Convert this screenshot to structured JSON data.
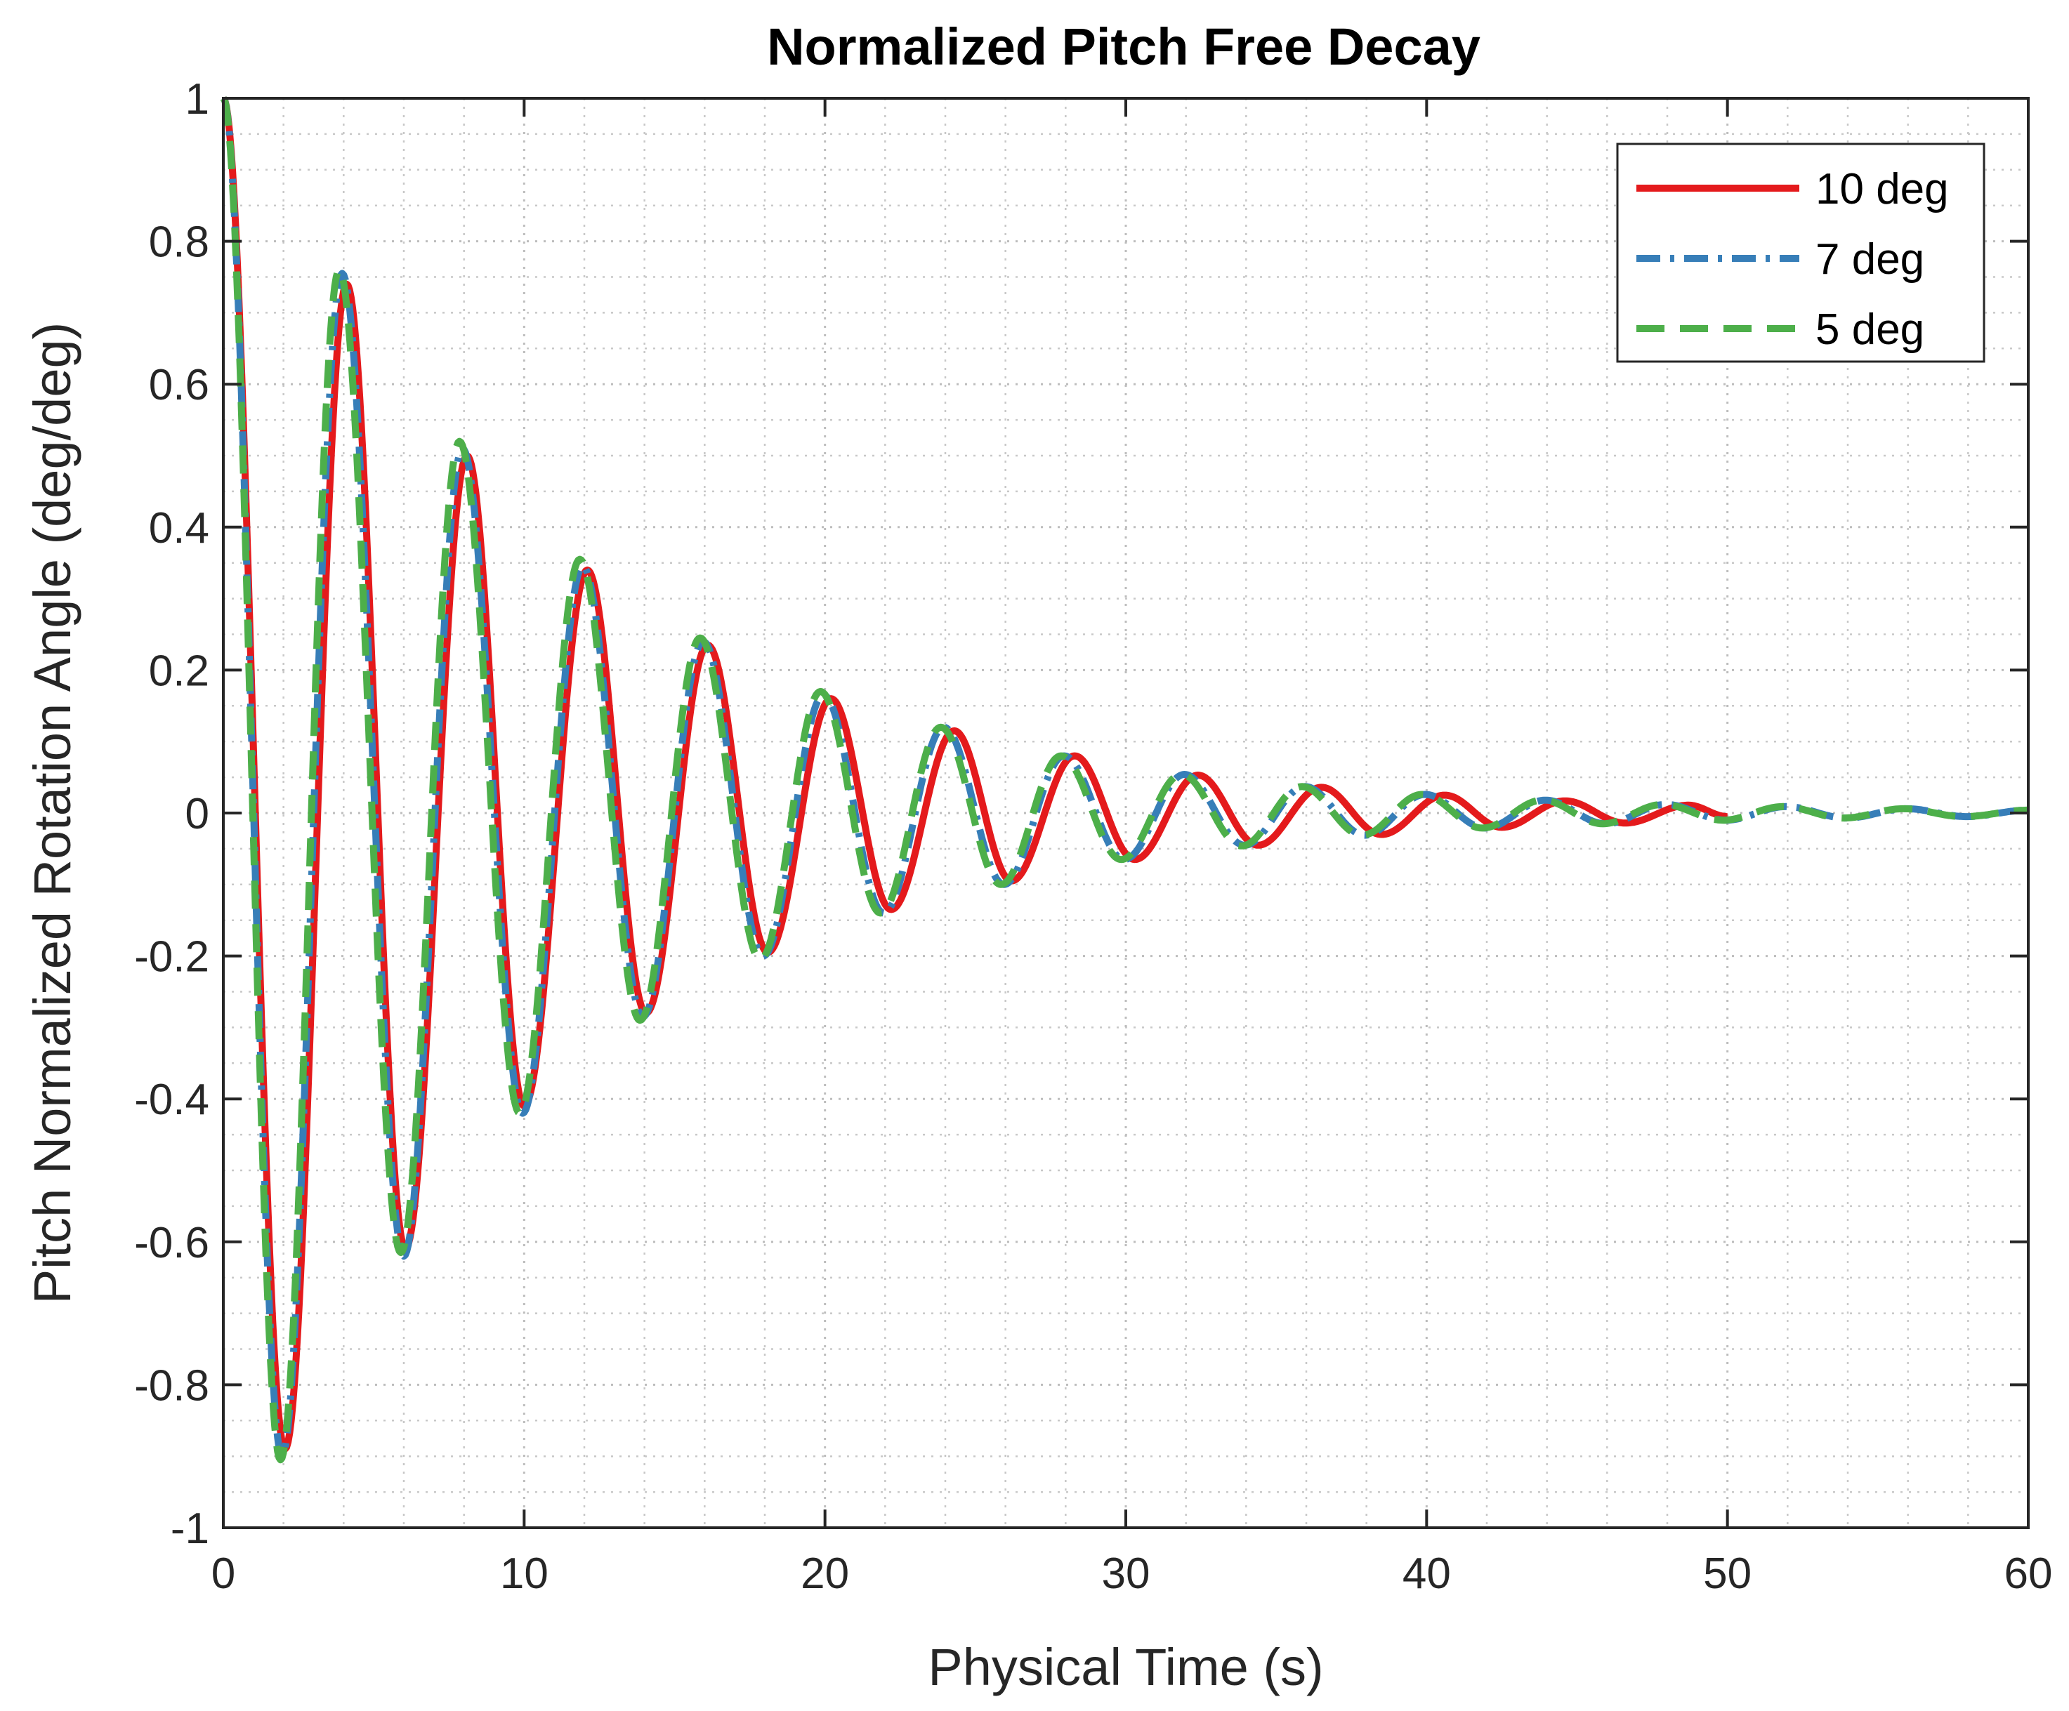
{
  "chart_data": {
    "type": "line",
    "title": "Normalized Pitch Free Decay",
    "xlabel": "Physical Time (s)",
    "ylabel": "Pitch Normalized Rotation Angle (deg/deg)",
    "xlim": [
      0,
      60
    ],
    "ylim": [
      -1,
      1
    ],
    "xticks": [
      0,
      10,
      20,
      30,
      40,
      50,
      60
    ],
    "xtick_labels": [
      "0",
      "10",
      "20",
      "30",
      "40",
      "50",
      "60"
    ],
    "yticks": [
      -1,
      -0.8,
      -0.6,
      -0.4,
      -0.2,
      0,
      0.2,
      0.4,
      0.6,
      0.8,
      1
    ],
    "ytick_labels": [
      "-1",
      "-0.8",
      "-0.6",
      "-0.4",
      "-0.2",
      "0",
      "0.2",
      "0.4",
      "0.6",
      "0.8",
      "1"
    ],
    "grid": true,
    "minor_grid": true,
    "legend_position": "top-right",
    "series": [
      {
        "name": "10 deg",
        "color": "#e41a1c",
        "dash": "solid",
        "extrema": [
          [
            0,
            1.0
          ],
          [
            2.05,
            -0.89
          ],
          [
            4.1,
            0.74
          ],
          [
            6.05,
            -0.61
          ],
          [
            8.1,
            0.5
          ],
          [
            10.0,
            -0.41
          ],
          [
            12.1,
            0.34
          ],
          [
            14.05,
            -0.28
          ],
          [
            16.1,
            0.235
          ],
          [
            18.1,
            -0.195
          ],
          [
            20.2,
            0.16
          ],
          [
            22.2,
            -0.135
          ],
          [
            24.3,
            0.115
          ],
          [
            26.2,
            -0.095
          ],
          [
            28.3,
            0.08
          ],
          [
            30.3,
            -0.065
          ],
          [
            32.4,
            0.053
          ],
          [
            34.4,
            -0.045
          ],
          [
            36.5,
            0.036
          ],
          [
            38.5,
            -0.03
          ],
          [
            40.6,
            0.025
          ],
          [
            42.5,
            -0.02
          ],
          [
            44.6,
            0.017
          ],
          [
            46.6,
            -0.014
          ],
          [
            48.7,
            0.011
          ],
          [
            50.0,
            -0.005
          ]
        ]
      },
      {
        "name": "7 deg",
        "color": "#377eb8",
        "dash": "dashdot",
        "extrema": [
          [
            0,
            1.0
          ],
          [
            1.95,
            -0.9
          ],
          [
            3.95,
            0.755
          ],
          [
            6.0,
            -0.62
          ],
          [
            7.95,
            0.51
          ],
          [
            9.95,
            -0.42
          ],
          [
            11.95,
            0.345
          ],
          [
            13.95,
            -0.285
          ],
          [
            15.95,
            0.24
          ],
          [
            17.95,
            -0.2
          ],
          [
            19.95,
            0.165
          ],
          [
            21.95,
            -0.14
          ],
          [
            23.95,
            0.12
          ],
          [
            25.95,
            -0.1
          ],
          [
            27.95,
            0.08
          ],
          [
            29.95,
            -0.065
          ],
          [
            31.95,
            0.054
          ],
          [
            33.95,
            -0.045
          ],
          [
            35.95,
            0.037
          ],
          [
            37.95,
            -0.031
          ],
          [
            39.95,
            0.026
          ],
          [
            41.95,
            -0.021
          ],
          [
            43.95,
            0.018
          ],
          [
            45.95,
            -0.015
          ],
          [
            47.95,
            0.012
          ],
          [
            49.95,
            -0.01
          ],
          [
            51.95,
            0.009
          ],
          [
            53.95,
            -0.007
          ],
          [
            55.95,
            0.006
          ],
          [
            57.95,
            -0.005
          ],
          [
            60.0,
            0.004
          ]
        ]
      },
      {
        "name": "5 deg",
        "color": "#4daf4a",
        "dash": "dashed",
        "extrema": [
          [
            0,
            1.0
          ],
          [
            1.9,
            -0.905
          ],
          [
            3.85,
            0.76
          ],
          [
            5.9,
            -0.615
          ],
          [
            7.85,
            0.52
          ],
          [
            9.85,
            -0.42
          ],
          [
            11.85,
            0.355
          ],
          [
            13.85,
            -0.29
          ],
          [
            15.85,
            0.245
          ],
          [
            17.85,
            -0.205
          ],
          [
            19.85,
            0.17
          ],
          [
            21.85,
            -0.14
          ],
          [
            23.85,
            0.12
          ],
          [
            25.85,
            -0.1
          ],
          [
            27.85,
            0.08
          ],
          [
            29.85,
            -0.065
          ],
          [
            31.85,
            0.054
          ],
          [
            33.85,
            -0.046
          ],
          [
            35.85,
            0.037
          ],
          [
            37.85,
            -0.031
          ],
          [
            39.85,
            0.026
          ],
          [
            41.85,
            -0.021
          ],
          [
            43.85,
            0.018
          ],
          [
            45.85,
            -0.015
          ],
          [
            47.85,
            0.012
          ],
          [
            49.85,
            -0.01
          ],
          [
            51.85,
            0.009
          ],
          [
            53.85,
            -0.007
          ],
          [
            55.85,
            0.006
          ],
          [
            57.85,
            -0.005
          ],
          [
            60.0,
            0.004
          ]
        ]
      }
    ]
  }
}
